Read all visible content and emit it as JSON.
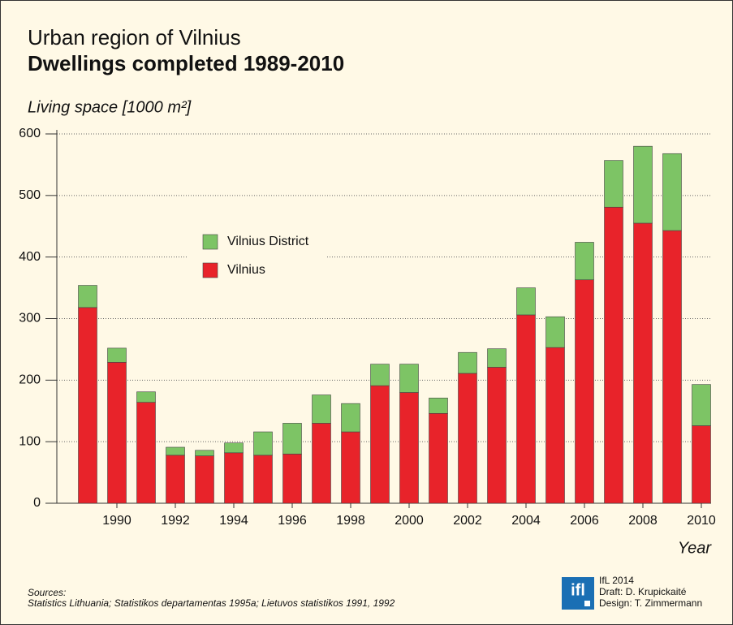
{
  "chart_data": {
    "type": "stacked_bar",
    "title": "Urban region of Vilnius",
    "subtitle": "Dwellings completed 1989-2010",
    "y_label": "Living space [1000 m²]",
    "x_label": "Year",
    "categories": [
      null,
      "1990",
      null,
      "1992",
      null,
      "1994",
      null,
      "1996",
      null,
      "1998",
      null,
      "2000",
      null,
      "2002",
      null,
      "2004",
      null,
      "2006",
      null,
      "2008",
      null,
      "2010"
    ],
    "series": [
      {
        "name": "Vilnius",
        "color": "#e8232a",
        "values": [
          318,
          229,
          164,
          78,
          77,
          82,
          78,
          80,
          130,
          116,
          191,
          180,
          146,
          211,
          221,
          306,
          253,
          363,
          481,
          455,
          443,
          126
        ]
      },
      {
        "name": "Vilnius District",
        "color": "#7dc465",
        "values": [
          36,
          23,
          17,
          13,
          9,
          16,
          38,
          50,
          46,
          46,
          35,
          46,
          25,
          34,
          30,
          44,
          50,
          61,
          76,
          125,
          125,
          67
        ]
      }
    ],
    "ylim": [
      0,
      600
    ],
    "yticks": [
      0,
      100,
      200,
      300,
      400,
      500,
      600
    ],
    "grid": true,
    "legend": "upper center",
    "sources_title": "Sources:",
    "sources": "Statistics Lithuania; Statistikos departamentas 1995a; Lietuvos statistikos 1991, 1992",
    "logo": "ifl",
    "credits": [
      "IfL 2014",
      "Draft: D. Krupickaité",
      "Design: T. Zimmermann"
    ]
  }
}
